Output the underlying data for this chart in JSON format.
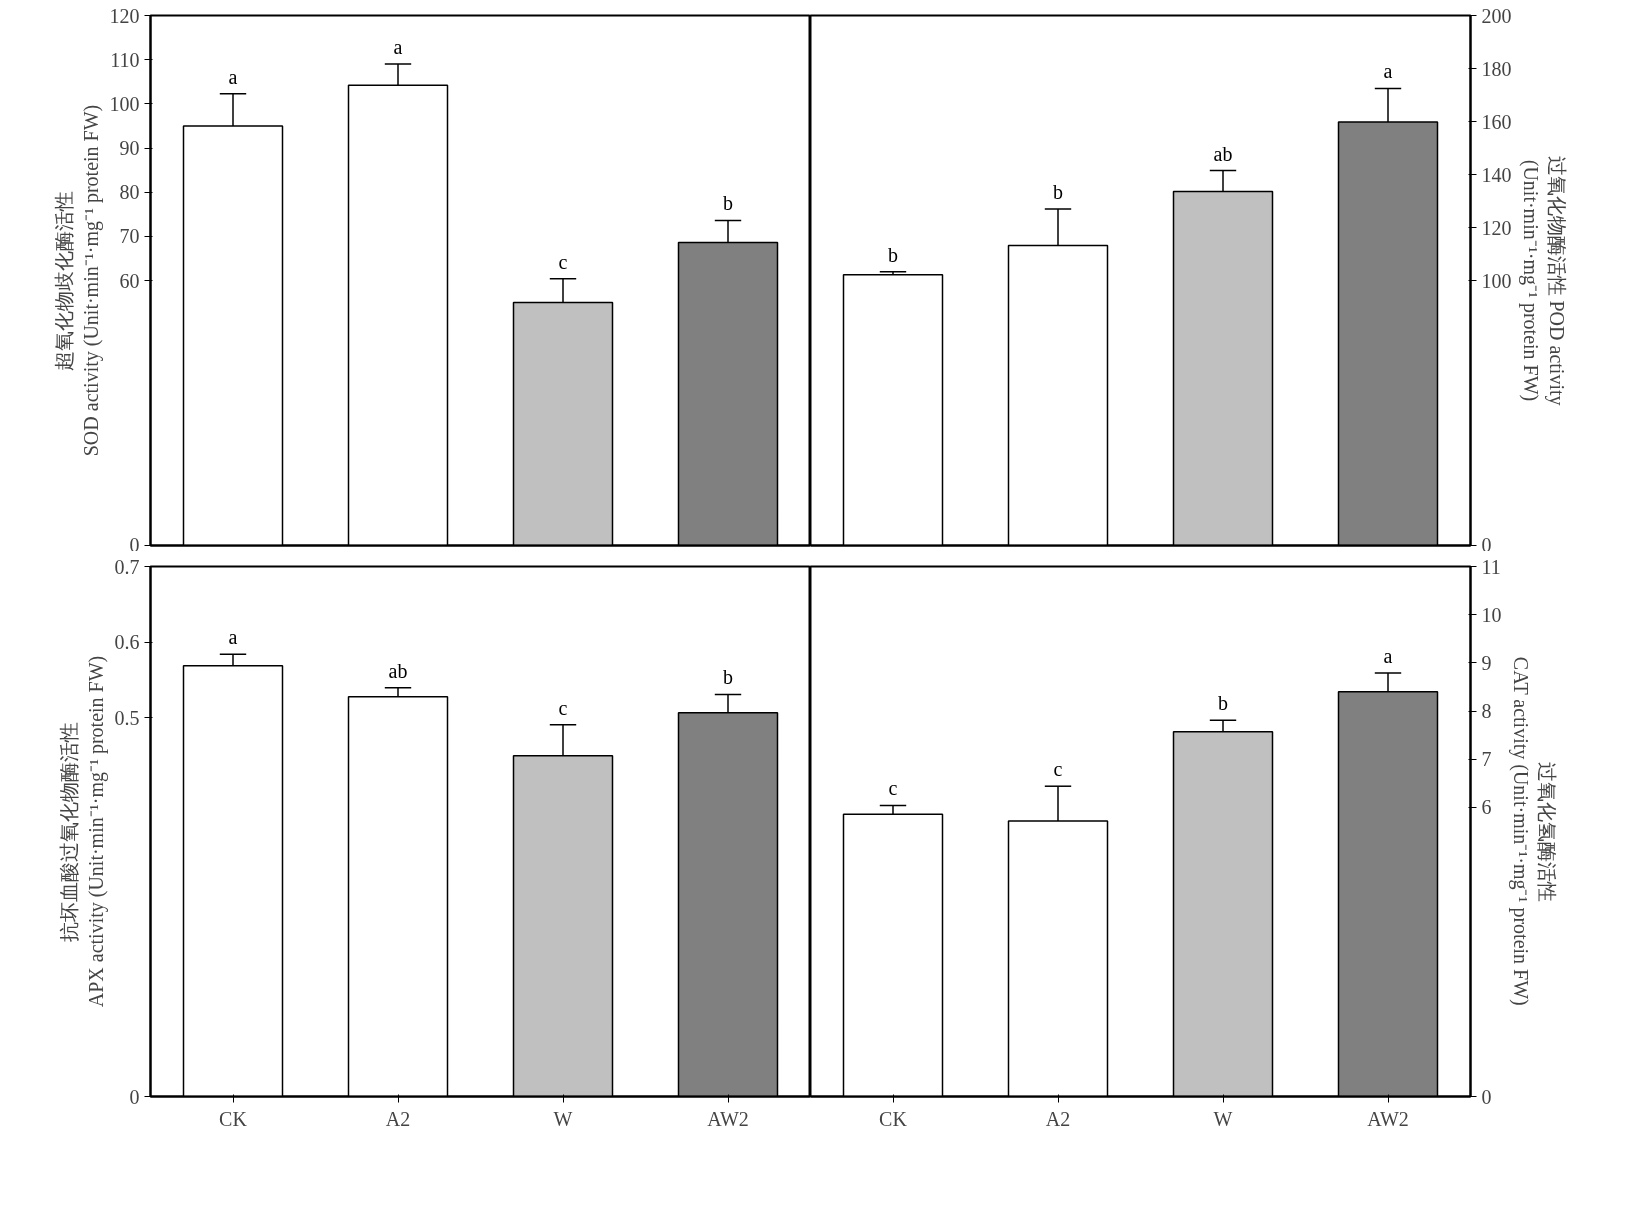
{
  "chart_data": [
    {
      "type": "bar",
      "categories": [
        "CK",
        "A2",
        "W",
        "AW2"
      ],
      "colors": [
        "#ffffff",
        "#ffffff",
        "#c0c0c0",
        "#808080"
      ],
      "series": [
        {
          "values": [
            95.0,
            104.2,
            55.0,
            68.6
          ],
          "errors": [
            [
              95.0,
              102.3
            ],
            [
              104.2,
              109.0
            ],
            [
              55.0,
              60.4
            ],
            [
              68.6,
              73.6
            ]
          ]
        }
      ],
      "ylabel": "超氧化物歧化酶活性\nSOD activity (Unit·min⁻¹·mg⁻¹ protein FW)",
      "ylim": [
        0,
        120
      ],
      "yticks": [
        0,
        60,
        70,
        80,
        90,
        100,
        110,
        120
      ],
      "tick_labels": "y",
      "annotations": [
        {
          "text": "a",
          "x": "CK",
          "y": 102.3
        },
        {
          "text": "a",
          "x": "A2",
          "y": 109.0
        },
        {
          "text": "c",
          "x": "W",
          "y": 60.4
        },
        {
          "text": "b",
          "x": "AW2",
          "y": 73.6
        }
      ]
    },
    {
      "type": "bar",
      "categories": [
        "CK",
        "A2",
        "W",
        "AW2"
      ],
      "colors": [
        "#ffffff",
        "#ffffff",
        "#c0c0c0",
        "#808080"
      ],
      "series": [
        {
          "values": [
            102.2,
            113.2,
            133.6,
            159.8
          ],
          "errors": [
            [
              102.2,
              103.3
            ],
            [
              113.2,
              127.0
            ],
            [
              133.6,
              141.5
            ],
            [
              159.8,
              172.5
            ]
          ]
        }
      ],
      "ylabel": "过氧化物酶活性 POD activity\n(Unit·min⁻¹·mg⁻¹ protein FW)",
      "ylim": [
        0,
        200
      ],
      "yticks": [
        0,
        100,
        120,
        140,
        160,
        180,
        200
      ],
      "tick_labels": "y",
      "annotations": [
        {
          "text": "b",
          "x": "CK",
          "y": 103.3
        },
        {
          "text": "b",
          "x": "A2",
          "y": 127.0
        },
        {
          "text": "ab",
          "x": "W",
          "y": 141.5
        },
        {
          "text": "a",
          "x": "AW2",
          "y": 172.5
        }
      ]
    },
    {
      "type": "bar",
      "categories": [
        "CK",
        "A2",
        "W",
        "AW2"
      ],
      "colors": [
        "#ffffff",
        "#ffffff",
        "#c0c0c0",
        "#808080"
      ],
      "series": [
        {
          "values": [
            0.569,
            0.528,
            0.45,
            0.507
          ],
          "errors": [
            [
              0.569,
              0.584
            ],
            [
              0.528,
              0.54
            ],
            [
              0.45,
              0.491
            ],
            [
              0.507,
              0.531
            ]
          ]
        }
      ],
      "ylabel": "抗坏血酸过氧化物酶活性\nAPX activity (Unit·min⁻¹·mg⁻¹ protein FW)",
      "ylim": [
        0,
        0.7
      ],
      "yticks": [
        0,
        0.5,
        0.6,
        0.7
      ],
      "annotations": [
        {
          "text": "a",
          "x": "CK",
          "y": 0.584
        },
        {
          "text": "ab",
          "x": "A2",
          "y": 0.54
        },
        {
          "text": "c",
          "x": "W",
          "y": 0.491
        },
        {
          "text": "b",
          "x": "AW2",
          "y": 0.531
        }
      ]
    },
    {
      "type": "bar",
      "categories": [
        "CK",
        "A2",
        "W",
        "AW2"
      ],
      "colors": [
        "#ffffff",
        "#ffffff",
        "#c0c0c0",
        "#808080"
      ],
      "series": [
        {
          "values": [
            5.86,
            5.72,
            7.57,
            8.4
          ],
          "errors": [
            [
              5.86,
              6.04
            ],
            [
              5.72,
              6.44
            ],
            [
              7.57,
              7.81
            ],
            [
              8.4,
              8.79
            ]
          ]
        }
      ],
      "ylabel": "过氧化氢酶活性\nCAT activity (Unit·min⁻¹·mg⁻¹ protein FW)",
      "ylim": [
        0,
        11
      ],
      "yticks": [
        0,
        6,
        7,
        8,
        9,
        10,
        11
      ],
      "annotations": [
        {
          "text": "c",
          "x": "CK",
          "y": 6.04
        },
        {
          "text": "c",
          "x": "A2",
          "y": 6.44
        },
        {
          "text": "b",
          "x": "W",
          "y": 7.81
        },
        {
          "text": "a",
          "x": "AW2",
          "y": 8.79
        }
      ]
    }
  ]
}
